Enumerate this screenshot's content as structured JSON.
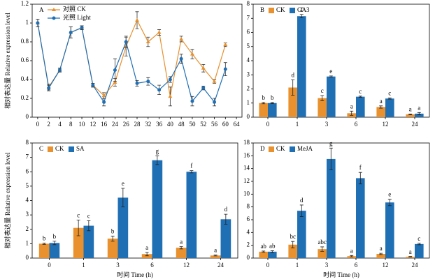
{
  "chart_data": [
    {
      "type": "line",
      "title": "A",
      "ylabel": "相对表达量 Relative expression level",
      "categories": [
        "0",
        "2",
        "4",
        "8",
        "10",
        "12",
        "16",
        "24",
        "26",
        "28",
        "32",
        "36",
        "40",
        "48",
        "50",
        "52",
        "56",
        "60",
        "64"
      ],
      "series": [
        {
          "name": "对照 CK",
          "color": "#e8912e",
          "values": [
            1.0,
            0.32,
            0.5,
            0.9,
            0.95,
            0.34,
            0.23,
            0.37,
            0.75,
            1.03,
            0.8,
            0.9,
            0.22,
            0.83,
            0.67,
            0.52,
            0.38,
            0.77,
            null
          ],
          "errors": [
            0.04,
            0.03,
            0.02,
            0.06,
            0.02,
            0.02,
            0.03,
            0.04,
            0.1,
            0.09,
            0.05,
            0.03,
            0.1,
            0.03,
            0.05,
            0.04,
            0.02,
            0.02,
            null
          ]
        },
        {
          "name": "光照 Light",
          "color": "#1f6fb5",
          "values": [
            1.0,
            0.31,
            0.5,
            0.9,
            0.95,
            0.34,
            0.16,
            0.5,
            0.8,
            0.36,
            0.38,
            0.29,
            0.4,
            0.62,
            0.17,
            0.31,
            0.16,
            0.51,
            null
          ],
          "errors": [
            0.04,
            0.03,
            0.02,
            0.06,
            0.02,
            0.02,
            0.04,
            0.12,
            0.06,
            0.03,
            0.04,
            0.05,
            0.03,
            0.05,
            0.05,
            0.02,
            0.04,
            0.07,
            null
          ]
        }
      ],
      "ylim": [
        0,
        1.2
      ],
      "yticks": [
        0,
        0.2,
        0.4,
        0.6,
        0.8,
        1,
        1.2
      ],
      "legend": "top-left"
    },
    {
      "type": "bar",
      "title": "B",
      "categories": [
        "0",
        "1",
        "3",
        "6",
        "12",
        "24"
      ],
      "series": [
        {
          "name": "CK",
          "color": "#e8912e",
          "values": [
            1.0,
            2.1,
            1.35,
            0.28,
            0.72,
            0.2
          ],
          "errors": [
            0.05,
            0.55,
            0.18,
            0.15,
            0.08,
            0.03
          ],
          "letters": [
            "b",
            "d",
            "c",
            "a",
            "a",
            "a"
          ]
        },
        {
          "name": "GA3",
          "color": "#1f6fb5",
          "values": [
            1.0,
            7.15,
            2.88,
            1.45,
            1.32,
            0.25
          ],
          "errors": [
            0.04,
            0.12,
            0.04,
            0.04,
            0.04,
            0.08
          ],
          "letters": [
            "b",
            "f",
            "e",
            "c",
            "c",
            "a"
          ]
        }
      ],
      "ylim": [
        0,
        8
      ],
      "yticks": [
        0,
        1,
        2,
        3,
        4,
        5,
        6,
        7,
        8
      ]
    },
    {
      "type": "bar",
      "title": "C",
      "ylabel": "相对表达量 Relative expression level",
      "xlabel": "时间 Time (h)",
      "categories": [
        "0",
        "1",
        "3",
        "6",
        "12",
        "24"
      ],
      "series": [
        {
          "name": "CK",
          "color": "#e8912e",
          "values": [
            1.0,
            2.1,
            1.35,
            0.28,
            0.72,
            0.18
          ],
          "errors": [
            0.05,
            0.55,
            0.18,
            0.12,
            0.08,
            0.03
          ],
          "letters": [
            "b",
            "c",
            "b",
            "a",
            "a",
            "a"
          ]
        },
        {
          "name": "SA",
          "color": "#1f6fb5",
          "values": [
            1.05,
            2.25,
            4.2,
            6.8,
            6.0,
            2.7
          ],
          "errors": [
            0.12,
            0.35,
            0.65,
            0.3,
            0.08,
            0.35
          ],
          "letters": [
            "b",
            "c",
            "e",
            "g",
            "f",
            "d"
          ]
        }
      ],
      "ylim": [
        0,
        8
      ],
      "yticks": [
        0,
        1,
        2,
        3,
        4,
        5,
        6,
        7,
        8
      ]
    },
    {
      "type": "bar",
      "title": "D",
      "xlabel": "时间 Time (h)",
      "categories": [
        "0",
        "1",
        "3",
        "6",
        "12",
        "24"
      ],
      "series": [
        {
          "name": "CK",
          "color": "#e8912e",
          "values": [
            1.0,
            2.1,
            1.4,
            0.3,
            0.65,
            0.2
          ],
          "errors": [
            0.1,
            0.5,
            0.35,
            0.1,
            0.1,
            0.05
          ],
          "letters": [
            "ab",
            "bc",
            "abc",
            "a",
            "a",
            "a"
          ]
        },
        {
          "name": "MeJA",
          "color": "#1f6fb5",
          "values": [
            1.0,
            7.4,
            15.5,
            12.5,
            8.7,
            2.2
          ],
          "errors": [
            0.15,
            0.9,
            1.7,
            0.9,
            0.5,
            0.12
          ],
          "letters": [
            "ab",
            "d",
            "g",
            "f",
            "e",
            "c"
          ]
        }
      ],
      "ylim": [
        0,
        18
      ],
      "yticks": [
        0,
        2,
        4,
        6,
        8,
        10,
        12,
        14,
        16,
        18
      ]
    }
  ]
}
